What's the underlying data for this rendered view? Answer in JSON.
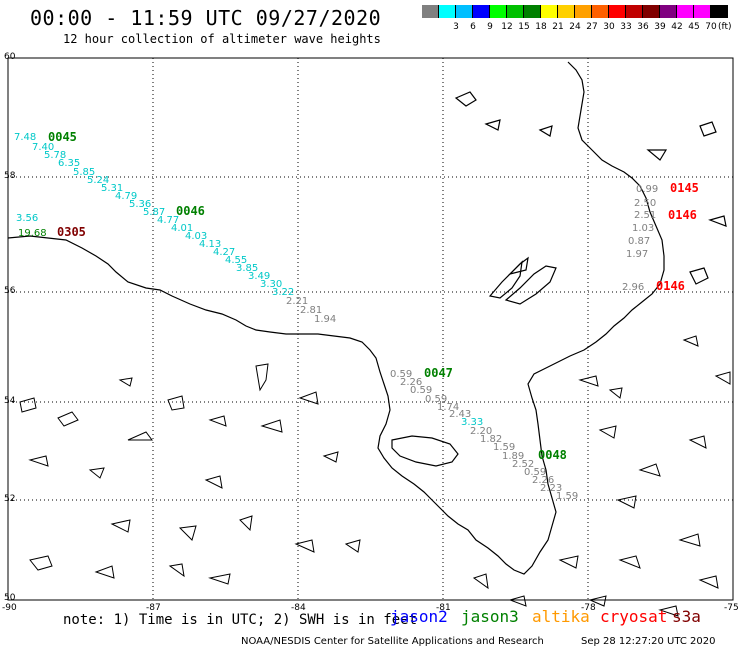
{
  "header": {
    "title": "00:00 - 11:59 UTC 09/27/2020",
    "subtitle": "12 hour collection of altimeter wave heights"
  },
  "legend": {
    "unit": "(ft)",
    "colors": [
      "#808080",
      "#00ffff",
      "#00bfff",
      "#0000ff",
      "#00ff00",
      "#00c000",
      "#008000",
      "#ffff00",
      "#ffd000",
      "#ffa000",
      "#ff6000",
      "#ff0000",
      "#c00000",
      "#800000",
      "#800080",
      "#ff00ff",
      "#ff00ff",
      "#000000"
    ],
    "labels": [
      "3",
      "6",
      "9",
      "12",
      "15",
      "18",
      "21",
      "24",
      "27",
      "30",
      "33",
      "36",
      "39",
      "42",
      "45",
      "70"
    ]
  },
  "axes": {
    "lat_labels": [
      "60",
      "58",
      "56",
      "54",
      "52",
      "50"
    ],
    "lon_labels": [
      "-90",
      "-87",
      "-84",
      "-81",
      "-78",
      "-75"
    ]
  },
  "passes": [
    {
      "id": "0045",
      "color": "#008000"
    },
    {
      "id": "0046",
      "color": "#008000"
    },
    {
      "id": "0305",
      "color": "#800000"
    },
    {
      "id": "0047",
      "color": "#008000"
    },
    {
      "id": "0048",
      "color": "#008000"
    },
    {
      "id": "0145",
      "color": "#ff0000"
    },
    {
      "id": "0146",
      "color": "#ff0000"
    },
    {
      "id": "0146",
      "color": "#ff0000"
    }
  ],
  "points": {
    "track1": [
      "7.48",
      "7.40",
      "5.78",
      "6.35",
      "5.85",
      "5.24",
      "5.31",
      "4.79",
      "5.36",
      "5.87",
      "4.77",
      "4.01",
      "4.03",
      "4.13",
      "4.27",
      "4.55",
      "3.85",
      "3.49",
      "3.30",
      "3.22",
      "2.21",
      "2.81",
      "1.94"
    ],
    "track1_colors": [
      "#00c8c8",
      "#00c8c8",
      "#00c8c8",
      "#00c8c8",
      "#00c8c8",
      "#00c8c8",
      "#00c8c8",
      "#00c8c8",
      "#00c8c8",
      "#00c8c8",
      "#00c8c8",
      "#00c8c8",
      "#00c8c8",
      "#00c8c8",
      "#00c8c8",
      "#00c8c8",
      "#00c8c8",
      "#00c8c8",
      "#00c8c8",
      "#00c8c8",
      "#808080",
      "#808080",
      "#808080"
    ],
    "track0305": [
      "3.56",
      "19.68"
    ],
    "track0305_colors": [
      "#00c8c8",
      "#008000"
    ],
    "track2": [
      "0.59",
      "2.26",
      "0.59",
      "0.59",
      "1.74",
      "2.43",
      "3.33",
      "2.20",
      "1.82",
      "1.59",
      "1.89",
      "2.52",
      "0.59",
      "2.26",
      "2.23",
      "1.59"
    ],
    "track2_colors": [
      "#808080",
      "#808080",
      "#808080",
      "#808080",
      "#808080",
      "#808080",
      "#00c8c8",
      "#808080",
      "#808080",
      "#808080",
      "#808080",
      "#808080",
      "#808080",
      "#808080",
      "#808080",
      "#808080"
    ],
    "track3": [
      "0.99",
      "2.50",
      "2.51",
      "1.03",
      "0.87",
      "1.97",
      "2.96"
    ],
    "track3_colors": [
      "#808080",
      "#808080",
      "#808080",
      "#808080",
      "#808080",
      "#808080",
      "#808080"
    ]
  },
  "footer": {
    "note": "note: 1) Time is in UTC; 2) SWH is in feet",
    "satellites": [
      {
        "name": "jason2",
        "color": "#0000ff"
      },
      {
        "name": "jason3",
        "color": "#008000"
      },
      {
        "name": "altika",
        "color": "#ff9900"
      },
      {
        "name": "cryosat",
        "color": "#ff0000"
      },
      {
        "name": "s3a",
        "color": "#800000"
      }
    ],
    "credit": "NOAA/NESDIS Center for Satellite Applications and Research",
    "timestamp": "Sep 28 12:27:20 UTC 2020"
  }
}
